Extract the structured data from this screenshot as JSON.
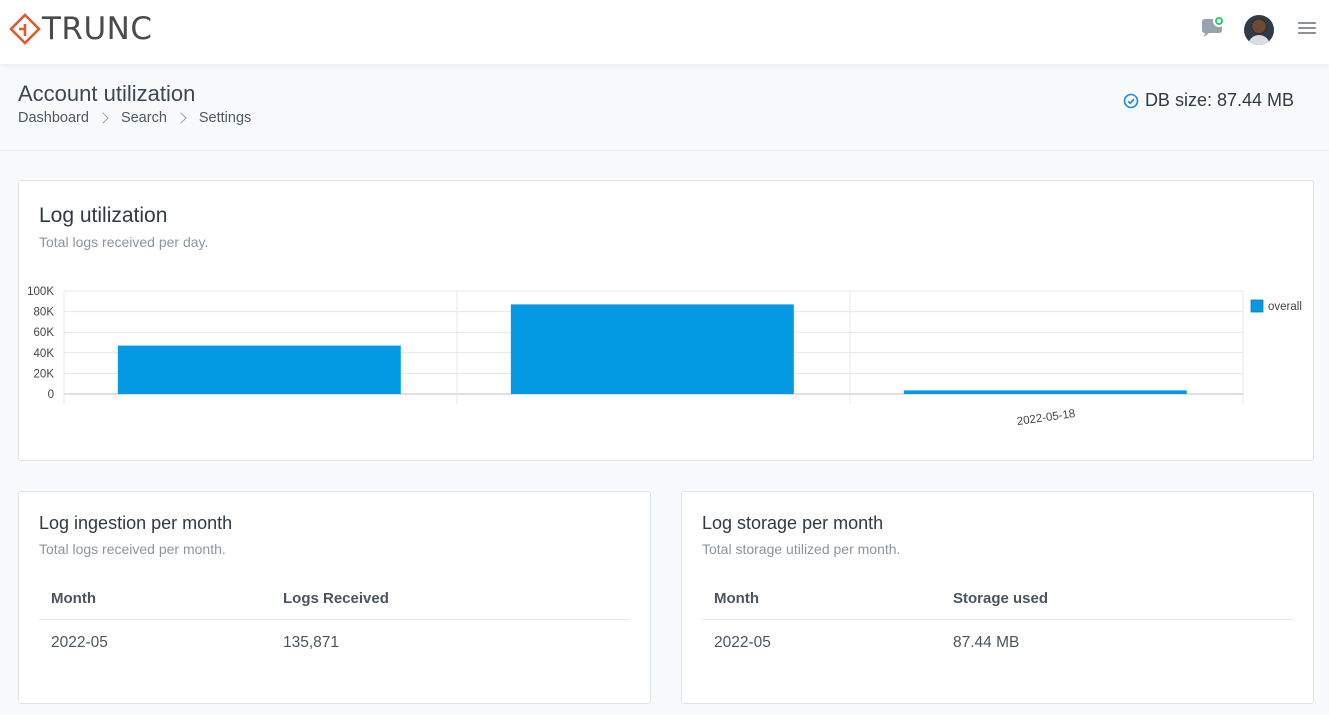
{
  "header": {
    "logo_text": "TRUNC",
    "brand_color": "#e05a2b",
    "icons": [
      "chat-notification-icon",
      "avatar",
      "hamburger-menu-icon"
    ]
  },
  "page": {
    "title": "Account utilization",
    "breadcrumb": [
      "Dashboard",
      "Search",
      "Settings"
    ],
    "db_size": "DB size: 87.44 MB"
  },
  "log_utilization": {
    "title": "Log utilization",
    "subtitle": "Total logs received per day.",
    "chart_data": {
      "type": "bar",
      "categories": [
        "",
        "",
        "2022-05-18"
      ],
      "series": [
        {
          "name": "overall",
          "values": [
            47000,
            87000,
            3500
          ],
          "color": "#0399e3"
        }
      ],
      "ylim": [
        0,
        100000
      ],
      "yticks": [
        "0",
        "20K",
        "40K",
        "60K",
        "80K",
        "100K"
      ],
      "ytick_values": [
        0,
        20000,
        40000,
        60000,
        80000,
        100000
      ],
      "grid": true,
      "legend": "right"
    }
  },
  "ingestion": {
    "title": "Log ingestion per month",
    "subtitle": "Total logs received per month.",
    "columns": [
      "Month",
      "Logs Received"
    ],
    "rows": [
      [
        "2022-05",
        "135,871"
      ]
    ]
  },
  "storage": {
    "title": "Log storage per month",
    "subtitle": "Total storage utilized per month.",
    "columns": [
      "Month",
      "Storage used"
    ],
    "rows": [
      [
        "2022-05",
        "87.44 MB"
      ]
    ]
  }
}
